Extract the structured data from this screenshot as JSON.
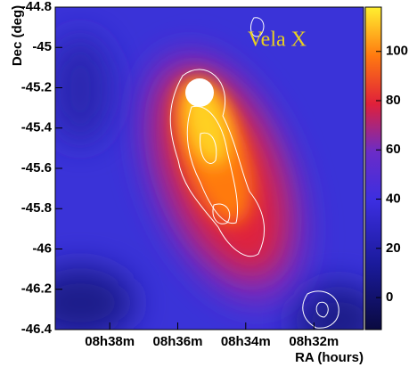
{
  "chart_data": {
    "type": "heatmap",
    "title": "Vela X",
    "x_label": "RA (hours)",
    "y_label": "Dec (deg)",
    "xlim": [
      8.66,
      8.509
    ],
    "xticks": [
      {
        "value": 8.6333,
        "label": "08h38m"
      },
      {
        "value": 8.6,
        "label": "08h36m"
      },
      {
        "value": 8.5667,
        "label": "08h34m"
      },
      {
        "value": 8.5333,
        "label": "08h32m"
      }
    ],
    "ylim": [
      -46.4,
      -44.8
    ],
    "yticks": [
      -44.8,
      -45,
      -45.2,
      -45.4,
      -45.6,
      -45.8,
      -46,
      -46.2,
      -46.4
    ],
    "colorbar": {
      "lim": [
        -13,
        118
      ],
      "ticks": [
        0,
        20,
        40,
        60,
        80,
        100
      ]
    }
  }
}
